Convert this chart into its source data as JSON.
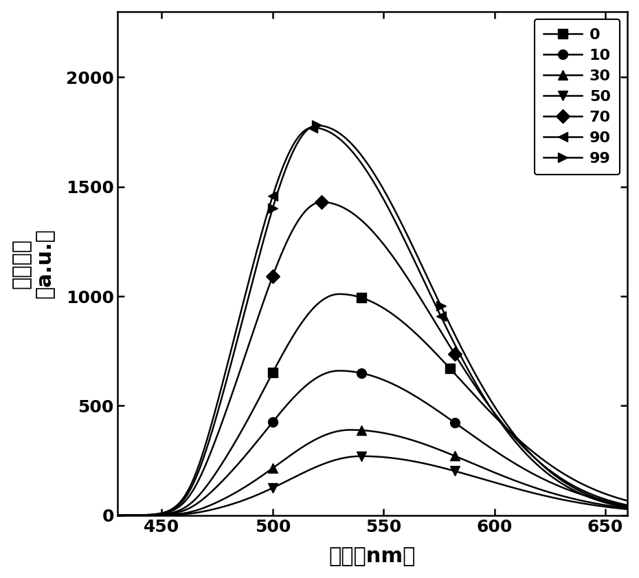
{
  "xlabel": "波长（nm）",
  "ylabel_line1": "发射强度",
  "ylabel_line2": "（a.u.）",
  "xlim": [
    430,
    660
  ],
  "ylim": [
    0,
    2300
  ],
  "xticks": [
    450,
    500,
    550,
    600,
    650
  ],
  "yticks": [
    0,
    500,
    1000,
    1500,
    2000
  ],
  "background_color": "#ffffff",
  "series_params": [
    {
      "label": "0",
      "peak_x": 530,
      "peak_y": 1010,
      "sl": 32,
      "sr": 55,
      "base": 5,
      "rise_start": 462,
      "marker": "s"
    },
    {
      "label": "10",
      "peak_x": 530,
      "peak_y": 660,
      "sl": 32,
      "sr": 55,
      "base": 4,
      "rise_start": 462,
      "marker": "o"
    },
    {
      "label": "30",
      "peak_x": 535,
      "peak_y": 390,
      "sl": 32,
      "sr": 55,
      "base": 3,
      "rise_start": 462,
      "marker": "^"
    },
    {
      "label": "50",
      "peak_x": 540,
      "peak_y": 270,
      "sl": 32,
      "sr": 55,
      "base": 3,
      "rise_start": 462,
      "marker": "v"
    },
    {
      "label": "70",
      "peak_x": 522,
      "peak_y": 1430,
      "sl": 30,
      "sr": 52,
      "base": 4,
      "rise_start": 460,
      "marker": "D"
    },
    {
      "label": "90",
      "peak_x": 518,
      "peak_y": 1770,
      "sl": 29,
      "sr": 50,
      "base": 4,
      "rise_start": 458,
      "marker": "<"
    },
    {
      "label": "99",
      "peak_x": 520,
      "peak_y": 1780,
      "sl": 29,
      "sr": 50,
      "base": 4,
      "rise_start": 458,
      "marker": ">"
    }
  ],
  "marker_x_positions": {
    "0": [
      500,
      540,
      580
    ],
    "10": [
      500,
      540,
      582
    ],
    "30": [
      500,
      540,
      582
    ],
    "50": [
      500,
      540,
      582
    ],
    "70": [
      500,
      522,
      582
    ],
    "90": [
      500,
      518,
      576
    ],
    "99": [
      500,
      520,
      576
    ]
  }
}
